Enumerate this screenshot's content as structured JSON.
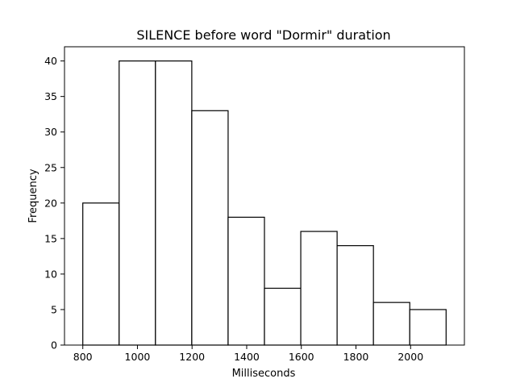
{
  "chart_data": {
    "type": "histogram",
    "title": "SILENCE before word \"Dormir\" duration",
    "xlabel": "Milliseconds",
    "ylabel": "Frequency",
    "bins": [
      {
        "start": 800,
        "end": 933,
        "count": 20
      },
      {
        "start": 933,
        "end": 1066,
        "count": 40
      },
      {
        "start": 1066,
        "end": 1199,
        "count": 40
      },
      {
        "start": 1199,
        "end": 1332,
        "count": 33
      },
      {
        "start": 1332,
        "end": 1465,
        "count": 18
      },
      {
        "start": 1465,
        "end": 1598,
        "count": 8
      },
      {
        "start": 1598,
        "end": 1731,
        "count": 16
      },
      {
        "start": 1731,
        "end": 1864,
        "count": 14
      },
      {
        "start": 1864,
        "end": 1997,
        "count": 6
      },
      {
        "start": 1997,
        "end": 2130,
        "count": 5
      }
    ],
    "xlim": [
      733,
      2197
    ],
    "ylim": [
      0,
      42
    ],
    "xticks": [
      800,
      1000,
      1200,
      1400,
      1600,
      1800,
      2000
    ],
    "yticks": [
      0,
      5,
      10,
      15,
      20,
      25,
      30,
      35,
      40
    ],
    "grid": false,
    "bar_fill": "#ffffff",
    "bar_edge": "#000000"
  }
}
